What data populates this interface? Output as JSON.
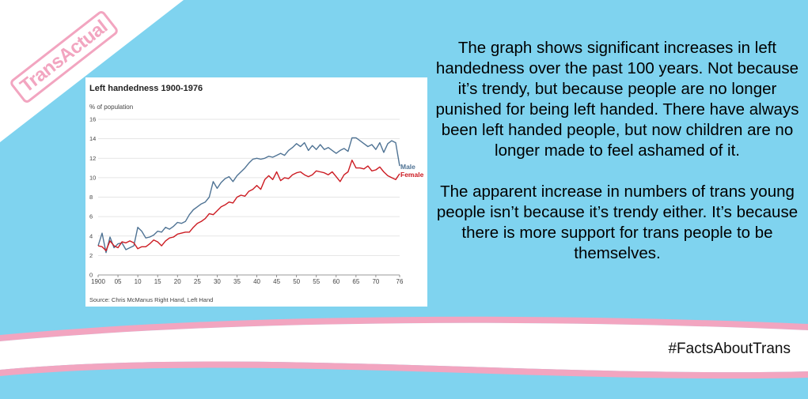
{
  "logo": {
    "text": "TransActual"
  },
  "text": {
    "paragraph_1": "The graph shows significant increases in left handedness over the past 100 years. Not because it’s trendy, but because people are no longer punished for being left handed. There have always been left handed people, but now children are no longer made to feel ashamed of it.",
    "paragraph_2": "The apparent increase in numbers of trans young people isn’t because it’s trendy either. It’s because there is more support for trans people to be themselves."
  },
  "hashtag": "#FactsAboutTrans",
  "colors": {
    "background": "#7fd3ef",
    "pink": "#f2a5c0",
    "male": "#4f7394",
    "female": "#cc1b22"
  },
  "chart_data": {
    "type": "line",
    "title": "Left handedness 1900-1976",
    "ylabel": "% of population",
    "source": "Source: Chris McManus Right Hand, Left Hand",
    "ylim": [
      0,
      16
    ],
    "xlim": [
      1900,
      1976
    ],
    "y_ticks": [
      0,
      2,
      4,
      6,
      8,
      10,
      12,
      14,
      16
    ],
    "x_ticks": [
      {
        "value": 1900,
        "label": "1900"
      },
      {
        "value": 1905,
        "label": "05"
      },
      {
        "value": 1910,
        "label": "10"
      },
      {
        "value": 1915,
        "label": "15"
      },
      {
        "value": 1920,
        "label": "20"
      },
      {
        "value": 1925,
        "label": "25"
      },
      {
        "value": 1930,
        "label": "30"
      },
      {
        "value": 1935,
        "label": "35"
      },
      {
        "value": 1940,
        "label": "40"
      },
      {
        "value": 1945,
        "label": "45"
      },
      {
        "value": 1950,
        "label": "50"
      },
      {
        "value": 1955,
        "label": "55"
      },
      {
        "value": 1960,
        "label": "60"
      },
      {
        "value": 1965,
        "label": "65"
      },
      {
        "value": 1970,
        "label": "70"
      },
      {
        "value": 1976,
        "label": "76"
      }
    ],
    "grid": true,
    "series": [
      {
        "name": "Male",
        "x": [
          1900,
          1901,
          1902,
          1903,
          1904,
          1905,
          1906,
          1907,
          1908,
          1909,
          1910,
          1911,
          1912,
          1913,
          1914,
          1915,
          1916,
          1917,
          1918,
          1919,
          1920,
          1921,
          1922,
          1923,
          1924,
          1925,
          1926,
          1927,
          1928,
          1929,
          1930,
          1931,
          1932,
          1933,
          1934,
          1935,
          1936,
          1937,
          1938,
          1939,
          1940,
          1941,
          1942,
          1943,
          1944,
          1945,
          1946,
          1947,
          1948,
          1949,
          1950,
          1951,
          1952,
          1953,
          1954,
          1955,
          1956,
          1957,
          1958,
          1959,
          1960,
          1961,
          1962,
          1963,
          1964,
          1965,
          1966,
          1967,
          1968,
          1969,
          1970,
          1971,
          1972,
          1973,
          1974,
          1975,
          1976
        ],
        "values": [
          3.0,
          4.3,
          2.3,
          3.9,
          2.8,
          3.2,
          3.3,
          2.6,
          2.8,
          3.0,
          4.9,
          4.5,
          3.8,
          3.9,
          4.1,
          4.5,
          4.4,
          4.9,
          4.7,
          5.0,
          5.4,
          5.3,
          5.5,
          6.2,
          6.7,
          7.0,
          7.3,
          7.5,
          8.0,
          9.6,
          8.9,
          9.5,
          9.9,
          10.1,
          9.6,
          10.2,
          10.6,
          11.0,
          11.5,
          11.9,
          12.0,
          11.9,
          12.0,
          12.2,
          12.1,
          12.3,
          12.5,
          12.3,
          12.8,
          13.1,
          13.5,
          13.2,
          13.6,
          12.8,
          13.3,
          12.9,
          13.4,
          12.9,
          13.1,
          12.8,
          12.5,
          12.8,
          13.0,
          12.7,
          14.1,
          14.1,
          13.8,
          13.5,
          13.2,
          13.4,
          12.9,
          13.6,
          12.6,
          13.5,
          13.8,
          13.6,
          11.2
        ]
      },
      {
        "name": "Female",
        "x": [
          1900,
          1901,
          1902,
          1903,
          1904,
          1905,
          1906,
          1907,
          1908,
          1909,
          1910,
          1911,
          1912,
          1913,
          1914,
          1915,
          1916,
          1917,
          1918,
          1919,
          1920,
          1921,
          1922,
          1923,
          1924,
          1925,
          1926,
          1927,
          1928,
          1929,
          1930,
          1931,
          1932,
          1933,
          1934,
          1935,
          1936,
          1937,
          1938,
          1939,
          1940,
          1941,
          1942,
          1943,
          1944,
          1945,
          1946,
          1947,
          1948,
          1949,
          1950,
          1951,
          1952,
          1953,
          1954,
          1955,
          1956,
          1957,
          1958,
          1959,
          1960,
          1961,
          1962,
          1963,
          1964,
          1965,
          1966,
          1967,
          1968,
          1969,
          1970,
          1971,
          1972,
          1973,
          1974,
          1975,
          1976
        ],
        "values": [
          3.0,
          2.9,
          2.5,
          3.5,
          3.0,
          2.8,
          3.4,
          3.3,
          3.5,
          3.3,
          2.7,
          2.9,
          2.9,
          3.2,
          3.6,
          3.4,
          3.0,
          3.5,
          3.8,
          3.9,
          4.2,
          4.3,
          4.4,
          4.4,
          4.9,
          5.3,
          5.5,
          5.8,
          6.3,
          6.2,
          6.6,
          7.0,
          7.2,
          7.5,
          7.4,
          8.0,
          8.2,
          8.1,
          8.6,
          8.8,
          9.2,
          8.8,
          9.8,
          10.2,
          9.8,
          10.6,
          9.7,
          10.0,
          9.9,
          10.3,
          10.5,
          10.6,
          10.3,
          10.1,
          10.3,
          10.7,
          10.6,
          10.5,
          10.3,
          10.6,
          10.1,
          9.6,
          10.3,
          10.6,
          11.8,
          11.0,
          11.0,
          10.9,
          11.2,
          10.7,
          10.8,
          11.1,
          10.6,
          10.2,
          10.0,
          9.8,
          10.4
        ]
      }
    ]
  }
}
